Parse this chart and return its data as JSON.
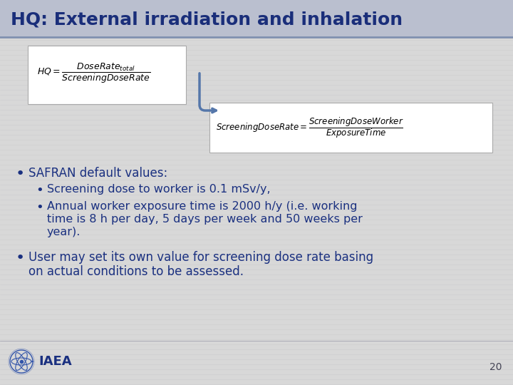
{
  "title": "HQ: External irradiation and inhalation",
  "title_color": "#1A2E7A",
  "title_bg_top": "#B8BDD0",
  "title_bg_bottom": "#C8CCDB",
  "slide_bg_color": "#D8D8D8",
  "content_bg_color": "#D4D4D8",
  "text_color": "#1A3080",
  "box_color": "#FFFFFF",
  "bullet1": "SAFRAN default values:",
  "bullet2": "Screening dose to worker is 0.1 mSv/y,",
  "bullet3_line1": "Annual worker exposure time is 2000 h/y (i.e. working",
  "bullet3_line2": "time is 8 h per day, 5 days per week and 50 weeks per",
  "bullet3_line3": "year).",
  "bullet4_line1": "User may set its own value for screening dose rate basing",
  "bullet4_line2": "on actual conditions to be assessed.",
  "page_number": "20",
  "title_line_color": "#8090B0",
  "stripe_color": "#C8C8CC",
  "arrow_color": "#5577AA"
}
